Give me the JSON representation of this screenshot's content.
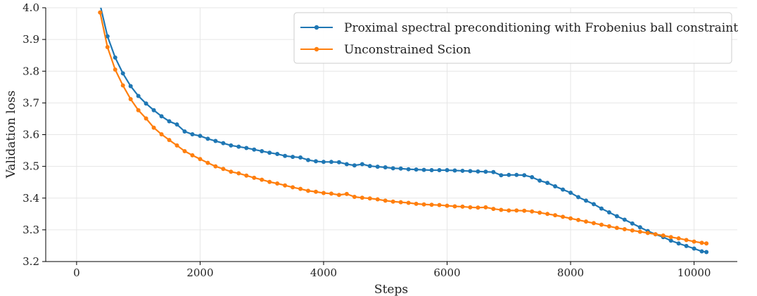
{
  "chart_data": {
    "type": "line",
    "title": "",
    "xlabel": "Steps",
    "ylabel": "Validation loss",
    "xlim": [
      -500,
      10700
    ],
    "ylim": [
      3.2,
      4.0
    ],
    "xticks": [
      0,
      2000,
      4000,
      6000,
      8000,
      10000
    ],
    "yticks": [
      3.2,
      3.3,
      3.4,
      3.5,
      3.6,
      3.7,
      3.8,
      3.9,
      4.0
    ],
    "grid": true,
    "legend_position": "top-right",
    "series": [
      {
        "name": "Proximal spectral preconditioning with Frobenius ball constraint",
        "color": "#1f77b4",
        "x": [
          380,
          500,
          625,
          750,
          875,
          1000,
          1125,
          1250,
          1375,
          1500,
          1625,
          1750,
          1875,
          2000,
          2125,
          2250,
          2375,
          2500,
          2625,
          2750,
          2875,
          3000,
          3125,
          3250,
          3375,
          3500,
          3625,
          3750,
          3875,
          4000,
          4125,
          4250,
          4375,
          4500,
          4625,
          4750,
          4875,
          5000,
          5125,
          5250,
          5375,
          5500,
          5625,
          5750,
          5875,
          6000,
          6125,
          6250,
          6375,
          6500,
          6625,
          6750,
          6875,
          7000,
          7125,
          7250,
          7375,
          7500,
          7625,
          7750,
          7875,
          8000,
          8125,
          8250,
          8375,
          8500,
          8625,
          8750,
          8875,
          9000,
          9125,
          9250,
          9375,
          9500,
          9625,
          9750,
          9875,
          10000,
          10125,
          10200
        ],
        "y": [
          4.01,
          3.91,
          3.843,
          3.793,
          3.753,
          3.722,
          3.698,
          3.677,
          3.658,
          3.642,
          3.632,
          3.61,
          3.601,
          3.596,
          3.587,
          3.58,
          3.573,
          3.566,
          3.562,
          3.558,
          3.553,
          3.548,
          3.543,
          3.539,
          3.533,
          3.53,
          3.528,
          3.52,
          3.516,
          3.514,
          3.514,
          3.513,
          3.507,
          3.503,
          3.507,
          3.501,
          3.499,
          3.497,
          3.494,
          3.493,
          3.491,
          3.49,
          3.489,
          3.488,
          3.488,
          3.488,
          3.487,
          3.486,
          3.485,
          3.484,
          3.483,
          3.482,
          3.472,
          3.473,
          3.473,
          3.472,
          3.466,
          3.455,
          3.448,
          3.437,
          3.427,
          3.417,
          3.403,
          3.392,
          3.381,
          3.367,
          3.355,
          3.343,
          3.332,
          3.32,
          3.308,
          3.296,
          3.286,
          3.277,
          3.266,
          3.257,
          3.249,
          3.241,
          3.232,
          3.23
        ]
      },
      {
        "name": "Unconstrained Scion",
        "color": "#ff7f0e",
        "x": [
          380,
          500,
          625,
          750,
          875,
          1000,
          1125,
          1250,
          1375,
          1500,
          1625,
          1750,
          1875,
          2000,
          2125,
          2250,
          2375,
          2500,
          2625,
          2750,
          2875,
          3000,
          3125,
          3250,
          3375,
          3500,
          3625,
          3750,
          3875,
          4000,
          4125,
          4250,
          4375,
          4500,
          4625,
          4750,
          4875,
          5000,
          5125,
          5250,
          5375,
          5500,
          5625,
          5750,
          5875,
          6000,
          6125,
          6250,
          6375,
          6500,
          6625,
          6750,
          6875,
          7000,
          7125,
          7250,
          7375,
          7500,
          7625,
          7750,
          7875,
          8000,
          8125,
          8250,
          8375,
          8500,
          8625,
          8750,
          8875,
          9000,
          9125,
          9250,
          9375,
          9500,
          9625,
          9750,
          9875,
          10000,
          10125,
          10200
        ],
        "y": [
          3.985,
          3.876,
          3.805,
          3.755,
          3.712,
          3.677,
          3.651,
          3.622,
          3.601,
          3.583,
          3.566,
          3.548,
          3.535,
          3.523,
          3.511,
          3.5,
          3.492,
          3.483,
          3.478,
          3.471,
          3.464,
          3.458,
          3.451,
          3.446,
          3.44,
          3.434,
          3.429,
          3.423,
          3.42,
          3.416,
          3.414,
          3.41,
          3.413,
          3.404,
          3.401,
          3.399,
          3.396,
          3.392,
          3.389,
          3.387,
          3.385,
          3.382,
          3.38,
          3.379,
          3.378,
          3.376,
          3.374,
          3.373,
          3.371,
          3.37,
          3.371,
          3.366,
          3.363,
          3.361,
          3.361,
          3.36,
          3.358,
          3.354,
          3.35,
          3.346,
          3.341,
          3.336,
          3.331,
          3.326,
          3.321,
          3.316,
          3.311,
          3.306,
          3.302,
          3.298,
          3.294,
          3.29,
          3.286,
          3.282,
          3.277,
          3.273,
          3.268,
          3.263,
          3.259,
          3.257
        ]
      }
    ]
  }
}
